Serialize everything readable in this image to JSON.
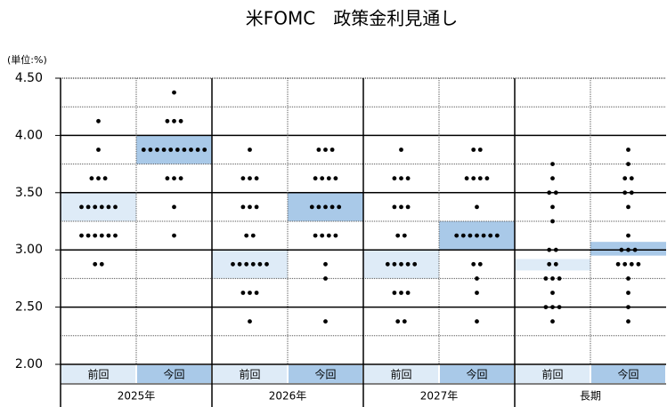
{
  "chart_data": {
    "type": "dot",
    "title": "米FOMC　政策金利見通し",
    "unit_label": "(単位:%)",
    "ylim": [
      2,
      4.5
    ],
    "yticks": [
      {
        "value": 2,
        "label": "2.00"
      },
      {
        "value": 2.5,
        "label": "2.50"
      },
      {
        "value": 3,
        "label": "3.00"
      },
      {
        "value": 3.5,
        "label": "3.50"
      },
      {
        "value": 4,
        "label": "4.00"
      },
      {
        "value": 4.5,
        "label": "4.50"
      }
    ],
    "minor_yticks": [
      2.25,
      2.75,
      3.25,
      3.75,
      4.25
    ],
    "dot_color": "#000000",
    "groups": [
      {
        "name": "2025年",
        "columns": [
          {
            "name": "前回",
            "color": "#deebf7",
            "band": [
              3.25,
              3.5
            ],
            "dots": [
              {
                "value": 4.125,
                "count": 1
              },
              {
                "value": 3.875,
                "count": 1
              },
              {
                "value": 3.625,
                "count": 3
              },
              {
                "value": 3.375,
                "count": 6
              },
              {
                "value": 3.125,
                "count": 6
              },
              {
                "value": 2.875,
                "count": 2
              }
            ]
          },
          {
            "name": "今回",
            "color": "#a9c9e8",
            "band": [
              3.75,
              4
            ],
            "dots": [
              {
                "value": 4.375,
                "count": 1
              },
              {
                "value": 4.125,
                "count": 3
              },
              {
                "value": 3.875,
                "count": 10
              },
              {
                "value": 3.625,
                "count": 3
              },
              {
                "value": 3.375,
                "count": 1
              },
              {
                "value": 3.125,
                "count": 1
              }
            ]
          }
        ]
      },
      {
        "name": "2026年",
        "columns": [
          {
            "name": "前回",
            "color": "#deebf7",
            "band": [
              2.75,
              3
            ],
            "dots": [
              {
                "value": 3.875,
                "count": 1
              },
              {
                "value": 3.625,
                "count": 3
              },
              {
                "value": 3.375,
                "count": 3
              },
              {
                "value": 3.125,
                "count": 2
              },
              {
                "value": 2.875,
                "count": 6
              },
              {
                "value": 2.625,
                "count": 3
              },
              {
                "value": 2.375,
                "count": 1
              }
            ]
          },
          {
            "name": "今回",
            "color": "#a9c9e8",
            "band": [
              3.25,
              3.5
            ],
            "dots": [
              {
                "value": 3.875,
                "count": 3
              },
              {
                "value": 3.625,
                "count": 4
              },
              {
                "value": 3.375,
                "count": 5
              },
              {
                "value": 3.125,
                "count": 4
              },
              {
                "value": 2.875,
                "count": 1
              },
              {
                "value": 2.75,
                "count": 1
              },
              {
                "value": 2.375,
                "count": 1
              }
            ]
          }
        ]
      },
      {
        "name": "2027年",
        "columns": [
          {
            "name": "前回",
            "color": "#deebf7",
            "band": [
              2.75,
              3
            ],
            "dots": [
              {
                "value": 3.875,
                "count": 1
              },
              {
                "value": 3.625,
                "count": 3
              },
              {
                "value": 3.375,
                "count": 3
              },
              {
                "value": 3.125,
                "count": 2
              },
              {
                "value": 2.875,
                "count": 5
              },
              {
                "value": 2.625,
                "count": 3
              },
              {
                "value": 2.375,
                "count": 2
              }
            ]
          },
          {
            "name": "今回",
            "color": "#a9c9e8",
            "band": [
              3,
              3.25
            ],
            "dots": [
              {
                "value": 3.875,
                "count": 2
              },
              {
                "value": 3.625,
                "count": 4
              },
              {
                "value": 3.375,
                "count": 1
              },
              {
                "value": 3.125,
                "count": 7
              },
              {
                "value": 2.875,
                "count": 2
              },
              {
                "value": 2.75,
                "count": 1
              },
              {
                "value": 2.625,
                "count": 1
              },
              {
                "value": 2.375,
                "count": 1
              }
            ]
          }
        ]
      },
      {
        "name": "長期",
        "columns": [
          {
            "name": "前回",
            "color": "#deebf7",
            "band": [
              2.82,
              2.92
            ],
            "dots": [
              {
                "value": 3.75,
                "count": 1
              },
              {
                "value": 3.625,
                "count": 1
              },
              {
                "value": 3.5,
                "count": 2
              },
              {
                "value": 3.375,
                "count": 1
              },
              {
                "value": 3.25,
                "count": 1
              },
              {
                "value": 3,
                "count": 2
              },
              {
                "value": 2.875,
                "count": 2
              },
              {
                "value": 2.75,
                "count": 3
              },
              {
                "value": 2.625,
                "count": 1
              },
              {
                "value": 2.5,
                "count": 3
              },
              {
                "value": 2.375,
                "count": 1
              }
            ]
          },
          {
            "name": "今回",
            "color": "#a9c9e8",
            "band": [
              2.95,
              3.07
            ],
            "dots": [
              {
                "value": 3.875,
                "count": 1
              },
              {
                "value": 3.75,
                "count": 1
              },
              {
                "value": 3.625,
                "count": 2
              },
              {
                "value": 3.5,
                "count": 2
              },
              {
                "value": 3.375,
                "count": 1
              },
              {
                "value": 3.125,
                "count": 1
              },
              {
                "value": 3,
                "count": 3
              },
              {
                "value": 2.875,
                "count": 4
              },
              {
                "value": 2.75,
                "count": 1
              },
              {
                "value": 2.625,
                "count": 1
              },
              {
                "value": 2.5,
                "count": 1
              },
              {
                "value": 2.375,
                "count": 1
              }
            ]
          }
        ]
      }
    ]
  }
}
